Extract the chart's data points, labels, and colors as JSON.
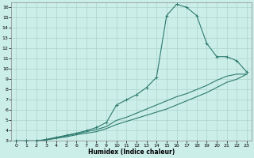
{
  "title": "",
  "xlabel": "Humidex (Indice chaleur)",
  "bg_color": "#cceee8",
  "line_color": "#2d7a6e",
  "grid_color": "#aad4cc",
  "xlim": [
    -0.5,
    23.5
  ],
  "ylim": [
    3,
    16.5
  ],
  "xticks": [
    0,
    1,
    2,
    3,
    4,
    5,
    6,
    7,
    8,
    9,
    10,
    11,
    12,
    13,
    14,
    15,
    16,
    17,
    18,
    19,
    20,
    21,
    22,
    23
  ],
  "yticks": [
    3,
    4,
    5,
    6,
    7,
    8,
    9,
    10,
    11,
    12,
    13,
    14,
    15,
    16
  ],
  "curve1_x": [
    0,
    1,
    2,
    3,
    4,
    5,
    6,
    7,
    8,
    9,
    10,
    11,
    12,
    13,
    14,
    15,
    16,
    17,
    18,
    19,
    20,
    21,
    22,
    23
  ],
  "curve1_y": [
    3.0,
    3.0,
    3.0,
    3.15,
    3.35,
    3.55,
    3.75,
    4.0,
    4.3,
    4.8,
    6.5,
    7.0,
    7.5,
    8.2,
    9.2,
    15.2,
    16.3,
    16.0,
    15.2,
    12.5,
    11.2,
    11.2,
    10.8,
    9.7
  ],
  "curve2_x": [
    0,
    1,
    2,
    3,
    4,
    5,
    6,
    7,
    8,
    9,
    10,
    11,
    12,
    13,
    14,
    15,
    16,
    17,
    18,
    19,
    20,
    21,
    22,
    23
  ],
  "curve2_y": [
    3.0,
    3.0,
    3.0,
    3.1,
    3.25,
    3.4,
    3.6,
    3.75,
    3.9,
    4.2,
    4.6,
    4.9,
    5.2,
    5.5,
    5.8,
    6.1,
    6.5,
    6.9,
    7.3,
    7.7,
    8.2,
    8.7,
    9.0,
    9.5
  ],
  "curve3_x": [
    0,
    1,
    2,
    3,
    4,
    5,
    6,
    7,
    8,
    9,
    10,
    11,
    12,
    13,
    14,
    15,
    16,
    17,
    18,
    19,
    20,
    21,
    22,
    23
  ],
  "curve3_y": [
    3.0,
    3.0,
    3.0,
    3.1,
    3.3,
    3.5,
    3.7,
    3.9,
    4.1,
    4.4,
    5.0,
    5.3,
    5.7,
    6.1,
    6.5,
    6.9,
    7.3,
    7.6,
    8.0,
    8.4,
    8.9,
    9.3,
    9.5,
    9.5
  ]
}
